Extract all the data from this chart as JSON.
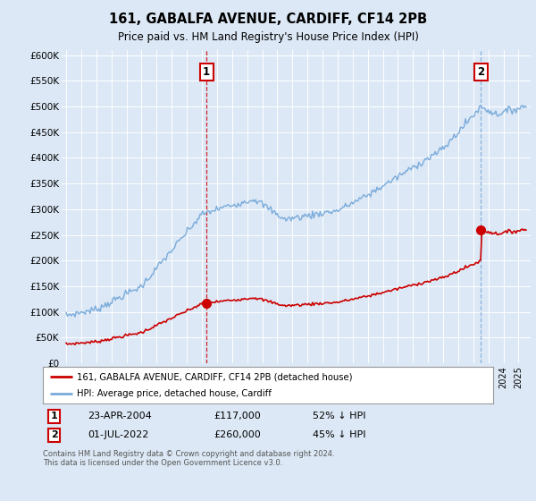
{
  "title": "161, GABALFA AVENUE, CARDIFF, CF14 2PB",
  "subtitle": "Price paid vs. HM Land Registry's House Price Index (HPI)",
  "background_color": "#dce8f5",
  "plot_bg_color": "#dce8f5",
  "grid_color": "#ffffff",
  "red_line_color": "#cc0000",
  "blue_line_color": "#7aabdb",
  "marker_color": "#cc0000",
  "sale1_vline_color": "#cc0000",
  "sale2_vline_color": "#7aabdb",
  "annotation_box_color": "#cc0000",
  "ylabel_ticks": [
    "£0",
    "£50K",
    "£100K",
    "£150K",
    "£200K",
    "£250K",
    "£300K",
    "£350K",
    "£400K",
    "£450K",
    "£500K",
    "£550K",
    "£600K"
  ],
  "ytick_values": [
    0,
    50000,
    100000,
    150000,
    200000,
    250000,
    300000,
    350000,
    400000,
    450000,
    500000,
    550000,
    600000
  ],
  "sale1_date_num": 2004.31,
  "sale1_price": 117000,
  "sale1_label": "1",
  "sale2_date_num": 2022.5,
  "sale2_price": 260000,
  "sale2_label": "2",
  "legend_label_red": "161, GABALFA AVENUE, CARDIFF, CF14 2PB (detached house)",
  "legend_label_blue": "HPI: Average price, detached house, Cardiff",
  "table_row1": [
    "1",
    "23-APR-2004",
    "£117,000",
    "52% ↓ HPI"
  ],
  "table_row2": [
    "2",
    "01-JUL-2022",
    "£260,000",
    "45% ↓ HPI"
  ],
  "footer_text": "Contains HM Land Registry data © Crown copyright and database right 2024.\nThis data is licensed under the Open Government Licence v3.0.",
  "xmin": 1994.7,
  "xmax": 2025.8,
  "ymin": 0,
  "ymax": 610000
}
